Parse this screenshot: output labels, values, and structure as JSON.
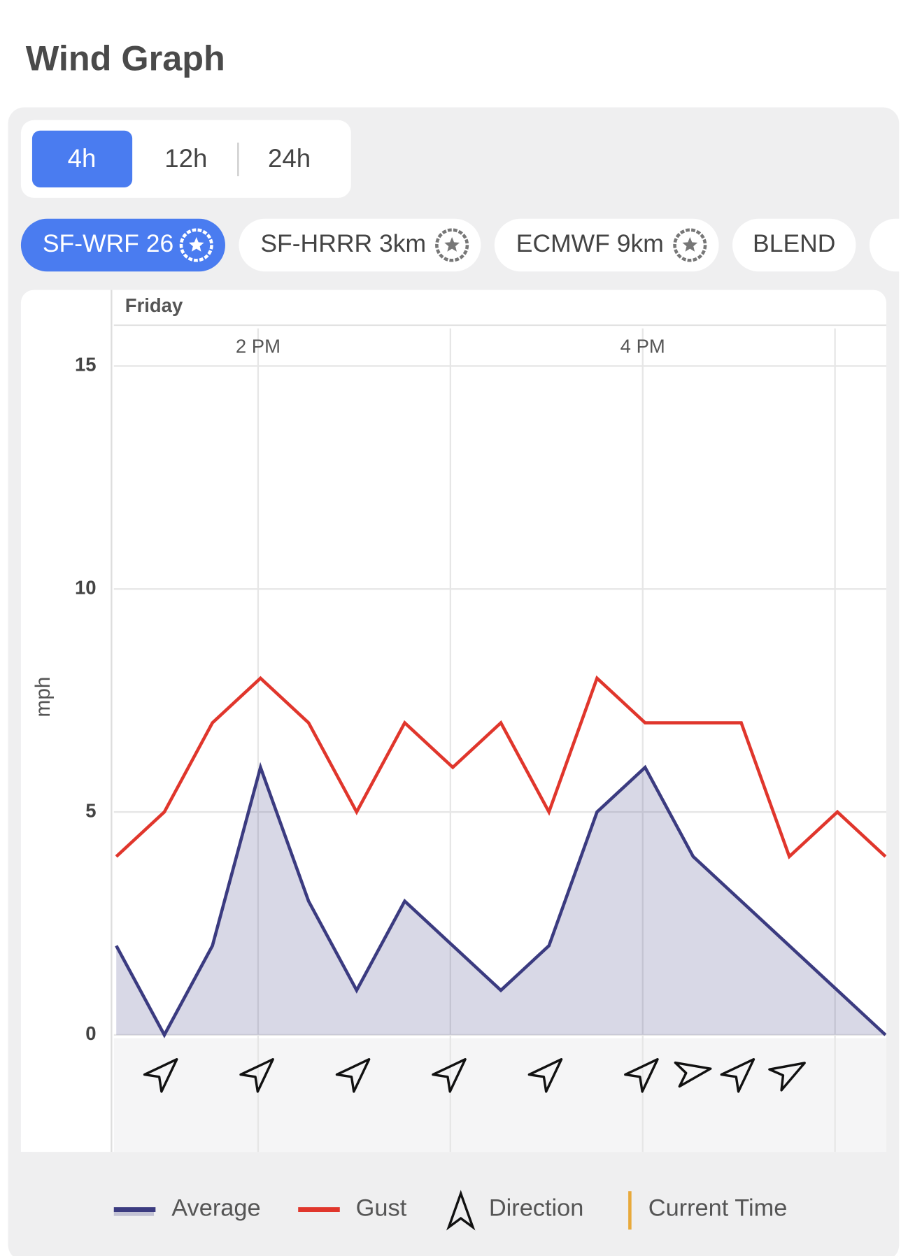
{
  "header": {
    "title": "Wind Graph"
  },
  "tabs": [
    "4h",
    "12h",
    "24h"
  ],
  "models": [
    {
      "name": "SF-WRF 26",
      "starred": true
    },
    {
      "name": "SF-HRRR 3km",
      "starred": true
    },
    {
      "name": "ECMWF 9km",
      "starred": true
    },
    {
      "name": "BLEND",
      "starred": false
    }
  ],
  "chart_data": {
    "type": "line",
    "day": "Friday",
    "ylabel": "mph",
    "categories": [
      null,
      null,
      null,
      "2 PM",
      null,
      null,
      null,
      null,
      null,
      null,
      null,
      "4 PM",
      null,
      null,
      null,
      null,
      null
    ],
    "series": [
      {
        "name": "Average",
        "color": "#3b3b80",
        "style": "area",
        "values": [
          2,
          0,
          2,
          6,
          3,
          1,
          3,
          2,
          1,
          2,
          5,
          6,
          4,
          3,
          2,
          1,
          0
        ]
      },
      {
        "name": "Gust",
        "color": "#e0362c",
        "style": "line",
        "values": [
          4,
          5,
          7,
          8,
          7,
          5,
          7,
          6,
          7,
          5,
          8,
          7,
          7,
          7,
          4,
          5,
          4
        ]
      },
      {
        "name": "Direction",
        "color": "#111111",
        "style": "arrow",
        "values": [
          null,
          45,
          null,
          45,
          null,
          45,
          null,
          45,
          null,
          45,
          null,
          45,
          80,
          45,
          60,
          null,
          null
        ]
      }
    ],
    "current_time": {
      "name": "Current Time",
      "color": "#e8a93b"
    },
    "ylim": [
      0,
      15
    ],
    "yticks": [
      0,
      5,
      10,
      15
    ],
    "grid": true
  }
}
